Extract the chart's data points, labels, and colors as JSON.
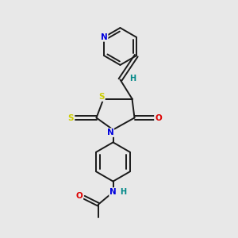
{
  "background_color": "#e8e8e8",
  "bond_color": "#1a1a1a",
  "atom_colors": {
    "N": "#0000dd",
    "O": "#dd0000",
    "S": "#cccc00",
    "H": "#008888"
  },
  "figsize": [
    3.0,
    3.0
  ],
  "dpi": 100,
  "xlim": [
    0,
    10
  ],
  "ylim": [
    0,
    10
  ]
}
